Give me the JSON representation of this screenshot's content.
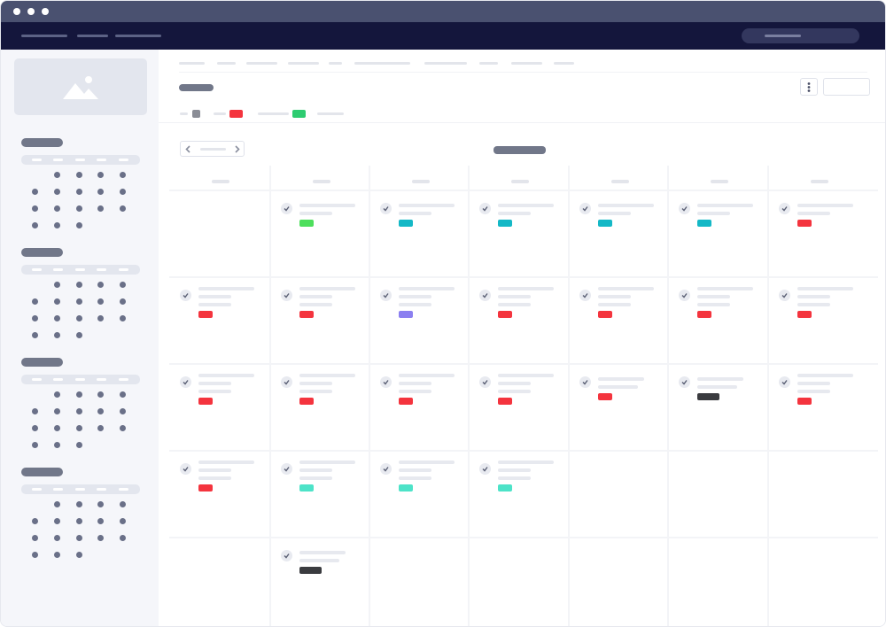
{
  "window": {
    "controls": [
      "close",
      "minimize",
      "maximize"
    ]
  },
  "colors": {
    "titlebar": "#4a5170",
    "nav": "#14163c",
    "accent_gray": "#717789",
    "red": "#f4343e",
    "green": "#2ecc71",
    "teal": "#14b8c6",
    "mint": "#4de3c8",
    "purple": "#8b7ff0",
    "dark": "#3a3b3f",
    "lightgreen": "#4ddf5c"
  },
  "calendar": {
    "weekday_count": 7,
    "rows": [
      [
        null,
        {
          "tag": "lightgreen"
        },
        {
          "tag": "teal"
        },
        {
          "tag": "teal"
        },
        {
          "tag": "teal"
        },
        {
          "tag": "teal"
        },
        {
          "tag": "red"
        }
      ],
      [
        {
          "tag": "red"
        },
        {
          "tag": "red"
        },
        {
          "tag": "purple"
        },
        {
          "tag": "red"
        },
        {
          "tag": "red"
        },
        {
          "tag": "red"
        },
        {
          "tag": "red"
        }
      ],
      [
        {
          "tag": "red"
        },
        {
          "tag": "red"
        },
        {
          "tag": "red"
        },
        {
          "tag": "red"
        },
        {
          "tag": "red",
          "short": true
        },
        {
          "tag": "dark",
          "short": true,
          "wide": true
        },
        {
          "tag": "red"
        }
      ],
      [
        {
          "tag": "red"
        },
        {
          "tag": "mint"
        },
        {
          "tag": "mint"
        },
        {
          "tag": "mint"
        },
        null,
        null,
        null
      ],
      [
        null,
        {
          "tag": "dark",
          "short": true,
          "wide": true
        },
        null,
        null,
        null,
        null,
        null
      ]
    ]
  },
  "legend": [
    {
      "color": "#8a8d96"
    },
    {
      "color": "#f4343e"
    },
    {
      "color": "#2ecc71"
    }
  ],
  "mini_months": 4
}
